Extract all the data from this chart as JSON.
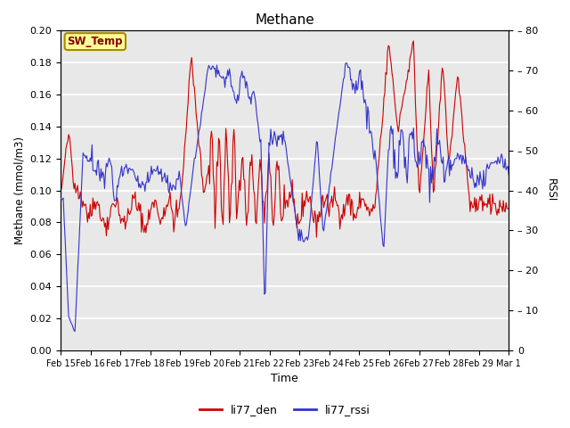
{
  "title": "Methane",
  "ylabel_left": "Methane (mmol/m3)",
  "ylabel_right": "RSSI",
  "xlabel": "Time",
  "ylim_left": [
    0.0,
    0.2
  ],
  "ylim_right": [
    0,
    80
  ],
  "yticks_left": [
    0.0,
    0.02,
    0.04,
    0.06,
    0.08,
    0.1,
    0.12,
    0.14,
    0.16,
    0.18,
    0.2
  ],
  "yticks_right": [
    0,
    10,
    20,
    30,
    40,
    50,
    60,
    70,
    80
  ],
  "ytick_right_labels": [
    "0",
    "– 10",
    "– 20",
    "– 30",
    "– 40",
    "– 50",
    "– 60",
    "– 70",
    "– 80"
  ],
  "line_color_red": "#cc0000",
  "line_color_blue": "#3333cc",
  "bg_color": "#e8e8e8",
  "plot_bg_color": "#e8e8e8",
  "grid_color": "#ffffff",
  "legend_labels": [
    "li77_den",
    "li77_rssi"
  ],
  "sw_temp_label": "SW_Temp",
  "sw_temp_bg": "#ffff99",
  "sw_temp_border": "#aa8800",
  "sw_temp_text_color": "#880000",
  "n_points": 500
}
